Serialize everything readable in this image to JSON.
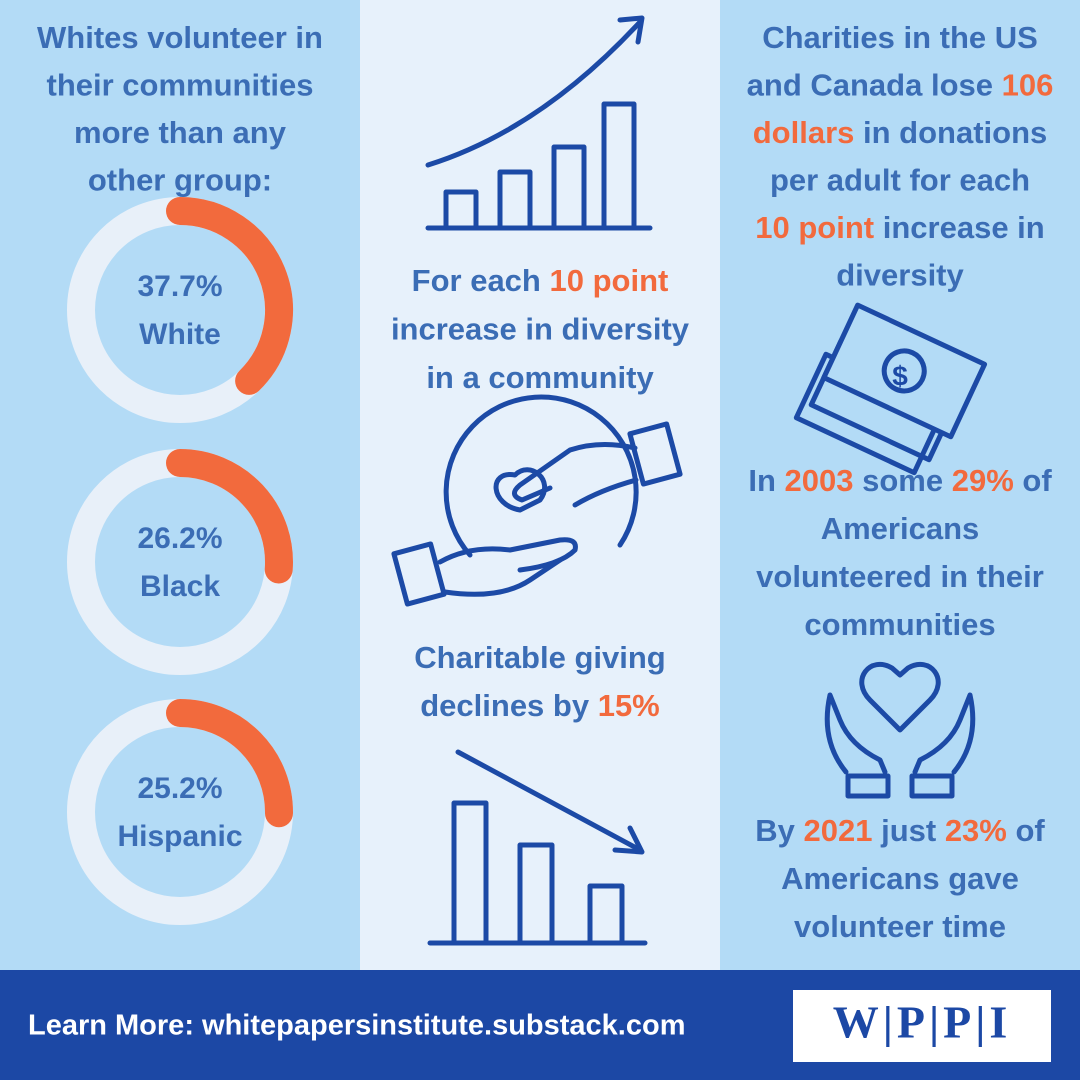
{
  "accent_color": "#f26a3d",
  "text_color": "#3b6db5",
  "left": {
    "heading": [
      [
        {
          "text": "Whites volunteer in"
        }
      ],
      [
        {
          "text": "their communities"
        }
      ],
      [
        {
          "text": "more than any"
        }
      ],
      [
        {
          "text": "other group:"
        }
      ]
    ],
    "donuts": [
      {
        "value": 37.7,
        "value_label": "37.7%",
        "label": "White"
      },
      {
        "value": 26.2,
        "value_label": "26.2%",
        "label": "Black"
      },
      {
        "value": 25.2,
        "value_label": "25.2%",
        "label": "Hispanic"
      }
    ]
  },
  "middle": {
    "text_1": [
      [
        {
          "text": "For each "
        },
        {
          "text": "10 point",
          "accent": true
        }
      ],
      [
        {
          "text": "increase in diversity"
        }
      ],
      [
        {
          "text": "in a community"
        }
      ]
    ],
    "text_2": [
      [
        {
          "text": "Charitable giving"
        }
      ],
      [
        {
          "text": "declines by "
        },
        {
          "text": "15%",
          "accent": true
        }
      ]
    ]
  },
  "right": {
    "text_1": [
      [
        {
          "text": "Charities in the US"
        }
      ],
      [
        {
          "text": "and Canada lose "
        },
        {
          "text": "106",
          "accent": true
        }
      ],
      [
        {
          "text": "dollars",
          "accent": true
        },
        {
          "text": " in donations"
        }
      ],
      [
        {
          "text": "per adult for each"
        }
      ],
      [
        {
          "text": "10 point",
          "accent": true
        },
        {
          "text": " increase in"
        }
      ],
      [
        {
          "text": "diversity"
        }
      ]
    ],
    "text_2": [
      [
        {
          "text": "In "
        },
        {
          "text": "2003",
          "accent": true
        },
        {
          "text": " some "
        },
        {
          "text": "29%",
          "accent": true
        },
        {
          "text": " of"
        }
      ],
      [
        {
          "text": "Americans"
        }
      ],
      [
        {
          "text": "volunteered in their"
        }
      ],
      [
        {
          "text": "communities"
        }
      ]
    ],
    "text_3": [
      [
        {
          "text": "By "
        },
        {
          "text": "2021",
          "accent": true
        },
        {
          "text": " just "
        },
        {
          "text": "23%",
          "accent": true
        },
        {
          "text": " of"
        }
      ],
      [
        {
          "text": "Americans gave"
        }
      ],
      [
        {
          "text": "volunteer time"
        }
      ]
    ]
  },
  "footer": {
    "link": "Learn More: whitepapersinstitute.substack.com",
    "logo": "W|P|P|I"
  }
}
